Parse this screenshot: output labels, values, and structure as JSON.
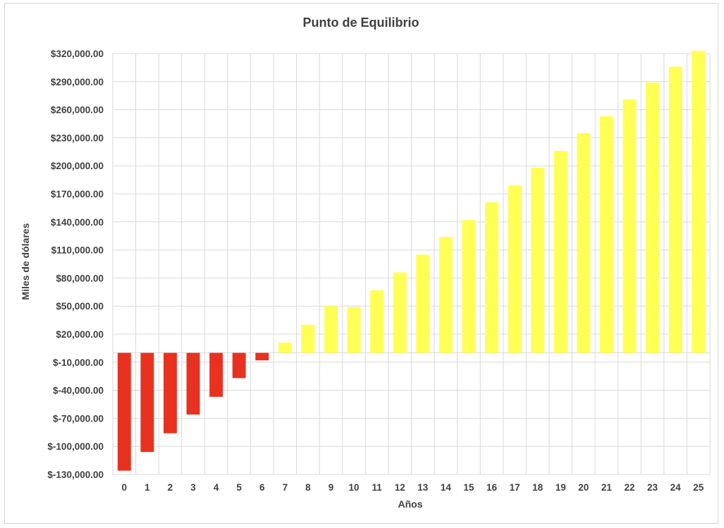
{
  "chart_data": {
    "type": "bar",
    "title": "Punto de Equilibrio",
    "xlabel": "Años",
    "ylabel": "Miles de dólares",
    "categories": [
      "0",
      "1",
      "2",
      "3",
      "4",
      "5",
      "6",
      "7",
      "8",
      "9",
      "10",
      "11",
      "12",
      "13",
      "14",
      "15",
      "16",
      "17",
      "18",
      "19",
      "20",
      "21",
      "22",
      "23",
      "24",
      "25"
    ],
    "values": [
      -126000,
      -106000,
      -86000,
      -66000,
      -47000,
      -27000,
      -8000,
      11000,
      30000,
      50000,
      49000,
      67000,
      86000,
      105000,
      124000,
      142000,
      161000,
      179000,
      198000,
      216000,
      235000,
      253000,
      271000,
      289000,
      306000,
      323000
    ],
    "ylim": [
      -130000,
      320000
    ],
    "yticks": [
      -130000,
      -100000,
      -70000,
      -40000,
      -10000,
      20000,
      50000,
      80000,
      110000,
      140000,
      170000,
      200000,
      230000,
      260000,
      290000,
      320000
    ],
    "ytick_labels": [
      "$-130,000.00",
      "$-100,000.00",
      "$-70,000.00",
      "$-40,000.00",
      "$-10,000.00",
      "$20,000.00",
      "$50,000.00",
      "$80,000.00",
      "$110,000.00",
      "$140,000.00",
      "$170,000.00",
      "$200,000.00",
      "$230,000.00",
      "$260,000.00",
      "$290,000.00",
      "$320,000.00"
    ],
    "grid": true,
    "legend": "none",
    "colors": {
      "negative": "#e8321f",
      "positive": "#ffff55",
      "grid": "#d9d9d9",
      "text": "#404040"
    }
  }
}
